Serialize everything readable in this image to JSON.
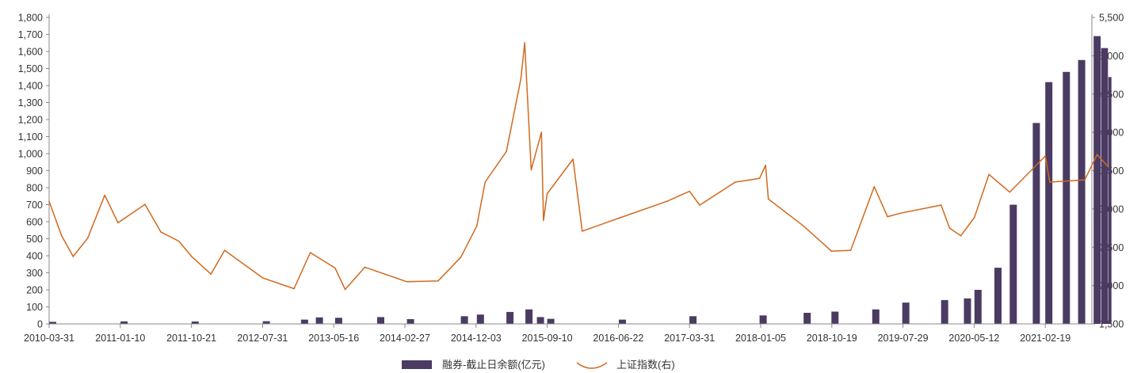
{
  "chart_data": {
    "type": "bar+line",
    "title": "",
    "colors": {
      "bar": "#4b3b63",
      "line": "#d2691e",
      "axis": "#888888"
    },
    "x_tick_labels": [
      "2010-03-31",
      "2011-01-10",
      "2011-10-21",
      "2012-07-31",
      "2013-05-16",
      "2014-02-27",
      "2014-12-03",
      "2015-09-10",
      "2016-06-22",
      "2017-03-31",
      "2018-01-05",
      "2018-10-19",
      "2019-07-29",
      "2020-05-12",
      "2021-02-19"
    ],
    "left_axis": {
      "min": 0,
      "max": 1800,
      "ticks": [
        "0",
        "100",
        "200",
        "300",
        "400",
        "500",
        "600",
        "700",
        "800",
        "900",
        "1,000",
        "1,100",
        "1,200",
        "1,300",
        "1,400",
        "1,500",
        "1,600",
        "1,700",
        "1,800"
      ]
    },
    "right_axis": {
      "min": 1500,
      "max": 5500,
      "ticks": [
        "1,500",
        "2,000",
        "2,500",
        "3,000",
        "3,500",
        "4,000",
        "4,500",
        "5,000",
        "5,500"
      ]
    },
    "legend": {
      "position": "bottom",
      "bar_label": "融券-截止日余额(亿元)",
      "line_label": "上证指数(右)"
    },
    "series": [
      {
        "name": "融券-截止日余额(亿元)",
        "kind": "bar",
        "axis": "left",
        "points": [
          [
            "2010-03-31",
            12
          ],
          [
            "2011-01-10",
            15
          ],
          [
            "2011-10-21",
            14
          ],
          [
            "2012-07-31",
            16
          ],
          [
            "2012-12-31",
            25
          ],
          [
            "2013-02-28",
            38
          ],
          [
            "2013-05-16",
            36
          ],
          [
            "2013-10-31",
            40
          ],
          [
            "2014-02-27",
            28
          ],
          [
            "2014-09-30",
            45
          ],
          [
            "2014-12-03",
            55
          ],
          [
            "2015-03-31",
            70
          ],
          [
            "2015-06-15",
            85
          ],
          [
            "2015-07-31",
            40
          ],
          [
            "2015-09-10",
            30
          ],
          [
            "2016-06-22",
            25
          ],
          [
            "2017-03-31",
            45
          ],
          [
            "2018-01-05",
            50
          ],
          [
            "2018-06-30",
            65
          ],
          [
            "2018-10-19",
            72
          ],
          [
            "2019-03-31",
            85
          ],
          [
            "2019-07-29",
            125
          ],
          [
            "2019-12-31",
            140
          ],
          [
            "2020-03-31",
            150
          ],
          [
            "2020-05-12",
            200
          ],
          [
            "2020-07-31",
            330
          ],
          [
            "2020-09-30",
            700
          ],
          [
            "2020-12-31",
            1180
          ],
          [
            "2021-02-19",
            1420
          ],
          [
            "2021-04-30",
            1480
          ],
          [
            "2021-06-30",
            1550
          ],
          [
            "2021-08-31",
            1690
          ],
          [
            "2021-09-30",
            1620
          ],
          [
            "2021-10-29",
            1450
          ]
        ]
      },
      {
        "name": "上证指数(右)",
        "kind": "line",
        "axis": "right",
        "points": [
          [
            "2010-03-31",
            3100
          ],
          [
            "2010-05-20",
            2650
          ],
          [
            "2010-07-05",
            2380
          ],
          [
            "2010-09-01",
            2620
          ],
          [
            "2010-11-08",
            3180
          ],
          [
            "2010-12-31",
            2820
          ],
          [
            "2011-04-18",
            3060
          ],
          [
            "2011-06-20",
            2700
          ],
          [
            "2011-08-31",
            2580
          ],
          [
            "2011-10-21",
            2380
          ],
          [
            "2012-01-06",
            2150
          ],
          [
            "2012-03-01",
            2460
          ],
          [
            "2012-07-31",
            2100
          ],
          [
            "2012-12-03",
            1960
          ],
          [
            "2013-02-06",
            2430
          ],
          [
            "2013-05-16",
            2230
          ],
          [
            "2013-06-25",
            1950
          ],
          [
            "2013-09-12",
            2240
          ],
          [
            "2014-02-27",
            2050
          ],
          [
            "2014-07-01",
            2060
          ],
          [
            "2014-09-30",
            2370
          ],
          [
            "2014-12-03",
            2780
          ],
          [
            "2015-01-05",
            3350
          ],
          [
            "2015-03-31",
            3750
          ],
          [
            "2015-05-28",
            4700
          ],
          [
            "2015-06-12",
            5170
          ],
          [
            "2015-07-08",
            3510
          ],
          [
            "2015-08-18",
            4000
          ],
          [
            "2015-08-26",
            2850
          ],
          [
            "2015-09-10",
            3200
          ],
          [
            "2015-12-22",
            3650
          ],
          [
            "2016-01-28",
            2710
          ],
          [
            "2016-06-22",
            2880
          ],
          [
            "2016-12-31",
            3100
          ],
          [
            "2017-03-31",
            3230
          ],
          [
            "2017-05-11",
            3050
          ],
          [
            "2017-09-30",
            3350
          ],
          [
            "2018-01-05",
            3400
          ],
          [
            "2018-01-29",
            3570
          ],
          [
            "2018-02-09",
            3130
          ],
          [
            "2018-06-29",
            2780
          ],
          [
            "2018-10-19",
            2450
          ],
          [
            "2019-01-04",
            2460
          ],
          [
            "2019-04-08",
            3290
          ],
          [
            "2019-05-31",
            2900
          ],
          [
            "2019-07-29",
            2950
          ],
          [
            "2019-12-31",
            3050
          ],
          [
            "2020-02-03",
            2750
          ],
          [
            "2020-03-19",
            2650
          ],
          [
            "2020-05-12",
            2890
          ],
          [
            "2020-07-09",
            3450
          ],
          [
            "2020-09-30",
            3220
          ],
          [
            "2021-02-19",
            3690
          ],
          [
            "2021-03-09",
            3350
          ],
          [
            "2021-07-27",
            3380
          ],
          [
            "2021-09-14",
            3710
          ],
          [
            "2021-10-29",
            3550
          ]
        ]
      }
    ]
  }
}
